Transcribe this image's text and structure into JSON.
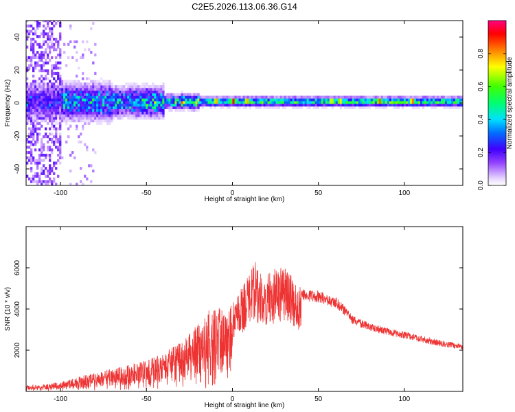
{
  "title": "C2E5.2026.113.06.36.G14",
  "chart_data": [
    {
      "type": "heatmap",
      "xlabel": "Height of straight line (km)",
      "ylabel": "Frequency (Hz)",
      "xlim": [
        -120,
        134
      ],
      "ylim": [
        -50,
        50
      ],
      "xticks": [
        -100,
        -50,
        0,
        50,
        100
      ],
      "yticks": [
        -40,
        -20,
        0,
        20,
        40
      ],
      "colorbar": {
        "label": "Normalized spectral amplitude",
        "range": [
          0,
          1
        ],
        "ticks": [
          0.0,
          0.2,
          0.4,
          0.6,
          0.8
        ],
        "tick_labels": [
          "0.0",
          "0.2",
          "0.4",
          "0.6",
          "0.8"
        ],
        "colormap": [
          "#e8d8ff",
          "#5000ff",
          "#0050ff",
          "#00ffff",
          "#00ff00",
          "#ffff00",
          "#ff8000",
          "#ff0000",
          "#ff0080"
        ]
      },
      "centerline_peaks": [
        {
          "x": -10,
          "value": 0.9
        },
        {
          "x": 0,
          "value": 0.95
        },
        {
          "x": 8,
          "value": 0.9
        },
        {
          "x": 57,
          "value": 0.85
        },
        {
          "x": 62,
          "value": 0.85
        },
        {
          "x": 85,
          "value": 0.9
        },
        {
          "x": 104,
          "value": 0.95
        }
      ]
    },
    {
      "type": "line",
      "xlabel": "Height of straight line (km)",
      "ylabel": "SNR (10 * v/v)",
      "xlim": [
        -120,
        134
      ],
      "ylim": [
        0,
        8000
      ],
      "xticks": [
        -100,
        -50,
        0,
        50,
        100
      ],
      "yticks": [
        2000,
        4000,
        6000
      ],
      "color": "#ee3333",
      "envelope": {
        "x": [
          -120,
          -110,
          -100,
          -90,
          -80,
          -70,
          -60,
          -50,
          -40,
          -30,
          -20,
          -16,
          -15,
          -10,
          -5,
          0,
          5,
          10,
          13,
          15,
          20,
          25,
          30,
          40,
          50,
          60,
          65,
          70,
          75,
          80,
          90,
          100,
          110,
          120,
          134
        ],
        "y": [
          300,
          350,
          450,
          700,
          900,
          1100,
          1300,
          1500,
          1900,
          2400,
          3300,
          3600,
          4000,
          4000,
          4100,
          4400,
          5000,
          5700,
          6400,
          5800,
          5800,
          6000,
          6100,
          5000,
          4900,
          4600,
          4200,
          3700,
          3500,
          3300,
          3100,
          2900,
          2700,
          2500,
          2300
        ]
      }
    }
  ]
}
